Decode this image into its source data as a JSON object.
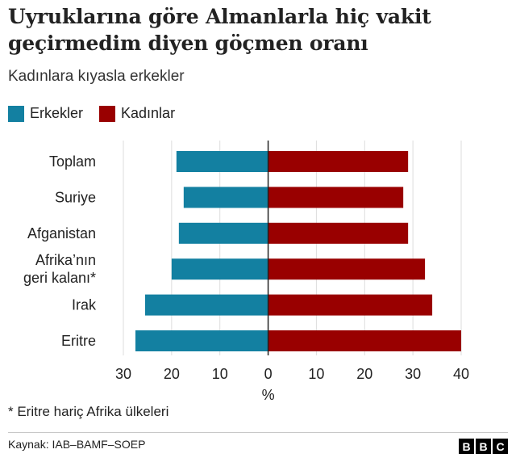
{
  "header": {
    "title": "Uyruklarına göre Almanlarla hiç vakit geçirmedim diyen göçmen oranı",
    "subtitle": "Kadınlara kıyasla erkekler"
  },
  "legend": {
    "men_label": "Erkekler",
    "women_label": "Kadınlar"
  },
  "colors": {
    "men": "#1380a1",
    "women": "#990000"
  },
  "chart_data": {
    "type": "bar",
    "orientation": "horizontal-diverging",
    "categories": [
      [
        "Toplam"
      ],
      [
        "Suriye"
      ],
      [
        "Afganistan"
      ],
      [
        "Afrika’nın",
        "geri kalanı*"
      ],
      [
        "Irak"
      ],
      [
        "Eritre"
      ]
    ],
    "series": [
      {
        "name": "Erkekler",
        "values": [
          19,
          17.5,
          18.5,
          20,
          25.5,
          27.5
        ]
      },
      {
        "name": "Kadınlar",
        "values": [
          29,
          28,
          29,
          32.5,
          34,
          40
        ]
      }
    ],
    "xlim": [
      -30,
      40
    ],
    "ticks": [
      -30,
      -20,
      -10,
      0,
      10,
      20,
      30,
      40
    ],
    "tick_labels": [
      "30",
      "20",
      "10",
      "0",
      "10",
      "20",
      "30",
      "40"
    ],
    "xlabel": "%",
    "grid": true
  },
  "footer": {
    "note": "* Eritre hariç Afrika ülkeleri",
    "source": "Kaynak: IAB–BAMF–SOEP",
    "logo_letters": [
      "B",
      "B",
      "C"
    ]
  }
}
